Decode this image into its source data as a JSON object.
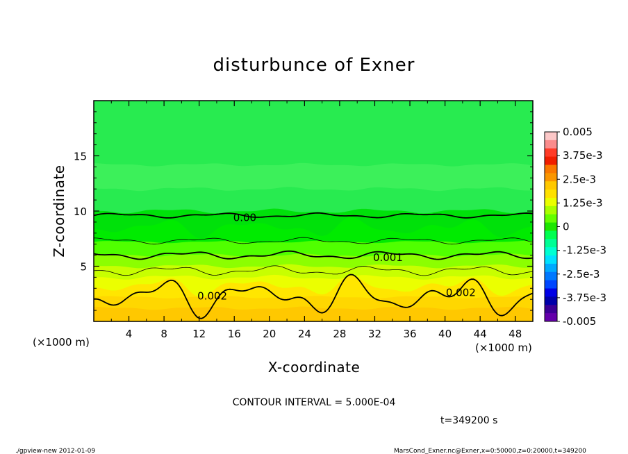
{
  "chart_data": {
    "type": "heatmap",
    "title": "disturbunce of Exner",
    "xlabel": "X-coordinate",
    "ylabel": "Z-coordinate",
    "x_unit_left": "(×1000 m)",
    "x_unit_right": "(×1000 m)",
    "xlim": [
      0,
      50
    ],
    "ylim": [
      0,
      20
    ],
    "x_ticks": [
      "4",
      "8",
      "12",
      "16",
      "20",
      "24",
      "28",
      "32",
      "36",
      "40",
      "44",
      "48"
    ],
    "x_tick_values": [
      4,
      8,
      12,
      16,
      20,
      24,
      28,
      32,
      36,
      40,
      44,
      48
    ],
    "y_ticks": [
      "5",
      "10",
      "15"
    ],
    "y_tick_values": [
      5,
      10,
      15
    ],
    "colorbar": {
      "labels": [
        "0.005",
        "3.75e-3",
        "2.5e-3",
        "1.25e-3",
        "0",
        "-1.25e-3",
        "-2.5e-3",
        "-3.75e-3",
        "-0.005"
      ],
      "colors": [
        "#fcc8c8",
        "#fa8c8c",
        "#ff3c28",
        "#f01e00",
        "#fa7800",
        "#fa9600",
        "#ffc800",
        "#ffe100",
        "#ebff00",
        "#aaff00",
        "#64ff00",
        "#1ee600",
        "#00ff50",
        "#00ff96",
        "#00ffd2",
        "#00e1ff",
        "#00aaff",
        "#0078ff",
        "#0046ff",
        "#0000e6",
        "#0000aa",
        "#3c0096",
        "#6400aa"
      ]
    },
    "bands": [
      {
        "z_top": 20,
        "color": "#28eb50"
      },
      {
        "z_top": 14.2,
        "color": "#3cf05a"
      },
      {
        "z_top": 12.0,
        "color": "#28eb50"
      },
      {
        "z_top": 10.0,
        "color": "#00e10a"
      },
      {
        "z_top": 8.5,
        "color": "#00eb00"
      },
      {
        "z_top": 7.2,
        "color": "#50ff00"
      },
      {
        "z_top": 6.0,
        "color": "#8cff00"
      },
      {
        "z_top": 5.0,
        "color": "#c8ff00"
      },
      {
        "z_top": 4.0,
        "color": "#ebff00"
      },
      {
        "z_top": 3.2,
        "color": "#ffe600"
      },
      {
        "z_top": 2.2,
        "color": "#ffd700"
      },
      {
        "z_top": 1.2,
        "color": "#ffc800"
      }
    ],
    "contours": [
      {
        "label": "0.00",
        "level": 0.0,
        "base_z": 9.6,
        "thick": true
      },
      {
        "label": "",
        "level": 0.0005,
        "base_z": 7.3,
        "thick": false
      },
      {
        "label": "0.001",
        "level": 0.001,
        "base_z": 6.0,
        "thick": true
      },
      {
        "label": "",
        "level": 0.0015,
        "base_z": 4.6,
        "thick": false
      },
      {
        "label": "0.002",
        "level": 0.002,
        "base_z": 2.3,
        "thick": true
      }
    ],
    "contour_label_positions": [
      {
        "label": "0.00",
        "x": 17.2,
        "z": 9.4
      },
      {
        "label": "0.001",
        "x": 33.5,
        "z": 5.8
      },
      {
        "label": "0.002",
        "x": 13.5,
        "z": 2.3
      },
      {
        "label": "0.002",
        "x": 41.8,
        "z": 2.6
      }
    ]
  },
  "annotations": {
    "contour_interval": "CONTOUR INTERVAL = 5.000E-04",
    "time": "t=349200 s",
    "program": "./gpview-new   2012-01-09",
    "source": "MarsCond_Exner.nc@Exner,x=0:50000,z=0:20000,t=349200"
  }
}
